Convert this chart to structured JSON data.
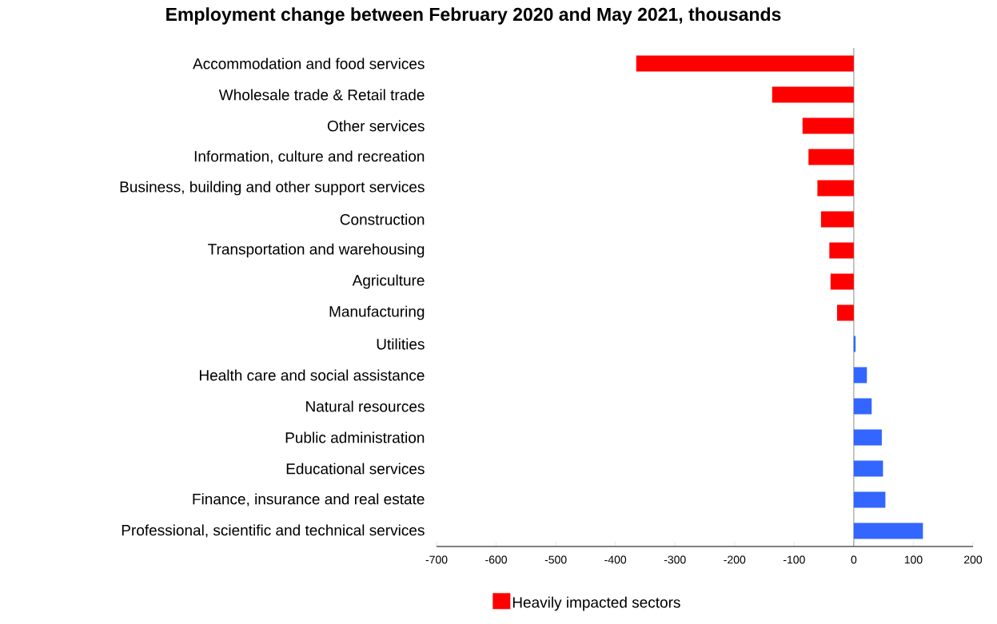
{
  "chart_data": {
    "type": "bar",
    "orientation": "horizontal",
    "title": "Employment change between February 2020 and May 2021, thousands",
    "categories": [
      "Accommodation and food services",
      "Wholesale trade & Retail trade",
      "Other services",
      "Information, culture and recreation",
      "Business, building and other support services",
      "Construction",
      "Transportation and warehousing",
      "Agriculture",
      "Manufacturing",
      "Utilities",
      "Health care and social assistance",
      "Natural resources",
      "Public administration",
      "Educational services",
      "Finance, insurance and real estate",
      "Professional, scientific and technical services"
    ],
    "series": [
      {
        "name": "Heavily impacted sectors",
        "color": "#ff0000",
        "values": [
          -365,
          -137,
          -86,
          -76,
          -61,
          -55,
          -41,
          -39,
          -28,
          null,
          null,
          null,
          null,
          null,
          null,
          null
        ]
      },
      {
        "color": "#3366ff",
        "values": [
          null,
          null,
          null,
          null,
          null,
          null,
          null,
          null,
          null,
          3,
          22,
          30,
          47,
          49,
          53,
          116
        ]
      }
    ],
    "xlim": [
      -700,
      200
    ],
    "xticks": [
      -700,
      -600,
      -500,
      -400,
      -300,
      -200,
      -100,
      0,
      100,
      200
    ],
    "legend": "bottom"
  }
}
